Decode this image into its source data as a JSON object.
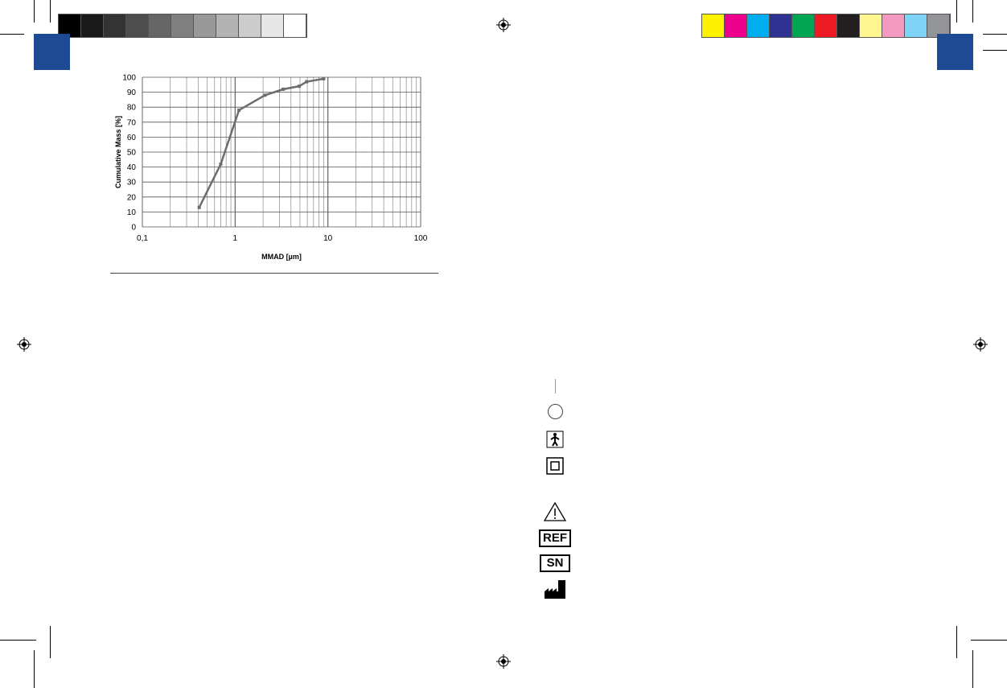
{
  "gray_swatches": [
    "#000000",
    "#1a1a1a",
    "#333333",
    "#4d4d4d",
    "#666666",
    "#808080",
    "#999999",
    "#b3b3b3",
    "#cccccc",
    "#e6e6e6",
    "#ffffff"
  ],
  "color_swatches": [
    "#fff200",
    "#ec008c",
    "#00aeef",
    "#2e3192",
    "#00a651",
    "#ed1c24",
    "#231f20",
    "#fff68f",
    "#f49ac1",
    "#7fd3f7",
    "#939598"
  ],
  "brand_color": "#1d4a93",
  "chart_data": {
    "type": "line",
    "title": "",
    "xlabel": "MMAD [µm]",
    "ylabel": "Cumulative Mass [%]",
    "xscale": "log",
    "xlim": [
      0.1,
      100
    ],
    "ylim": [
      0,
      100
    ],
    "grid": true,
    "x_tick_labels": [
      "0,1",
      "1",
      "10",
      "100"
    ],
    "y_tick_labels": [
      "0",
      "10",
      "20",
      "30",
      "40",
      "50",
      "60",
      "70",
      "80",
      "90",
      "100"
    ],
    "series": [
      {
        "color": "#6d6d6d",
        "x": [
          0.41,
          0.7,
          1.1,
          2.1,
          3.3,
          4.9,
          5.9,
          9.0
        ],
        "y": [
          13,
          42,
          78,
          88,
          92,
          94,
          97,
          99
        ]
      }
    ]
  },
  "symbols": {
    "ref": "REF",
    "sn": "SN"
  }
}
